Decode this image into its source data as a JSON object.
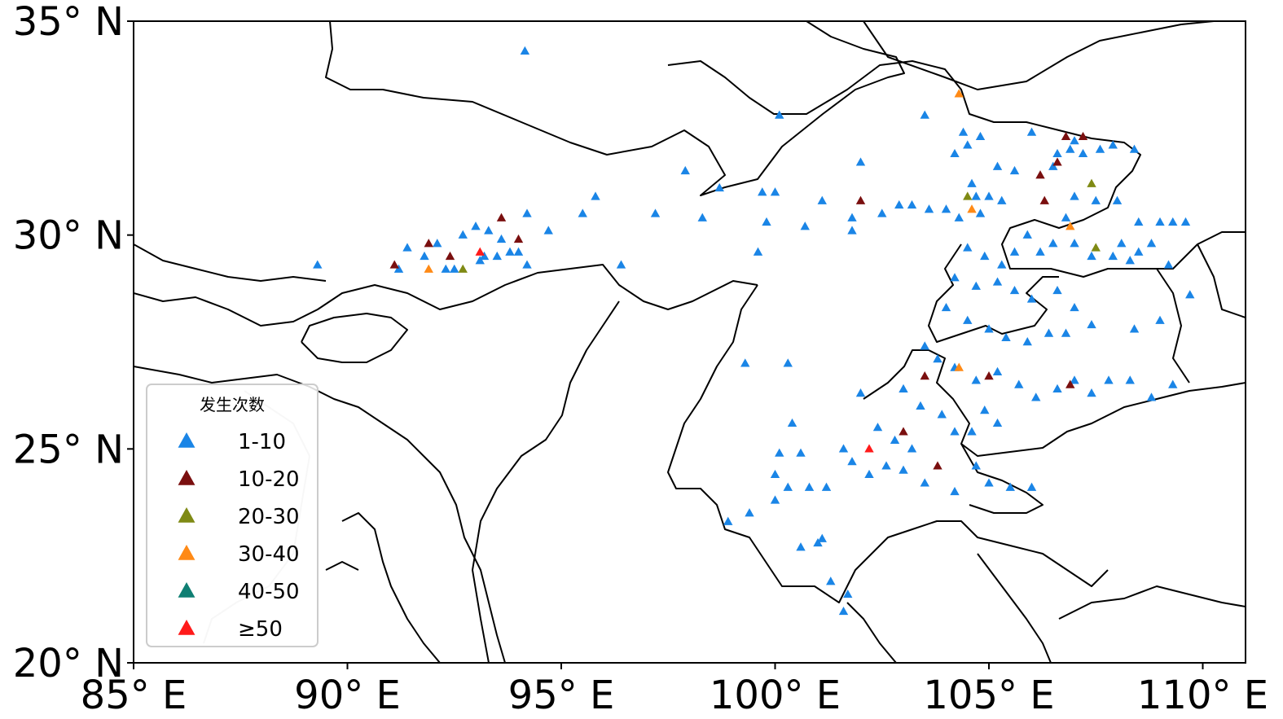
{
  "axis": {
    "lon_range": [
      85,
      111
    ],
    "lat_range": [
      20,
      35
    ],
    "x_ticks": [
      {
        "value": 85,
        "label": "85° E"
      },
      {
        "value": 90,
        "label": "90° E"
      },
      {
        "value": 95,
        "label": "95° E"
      },
      {
        "value": 100,
        "label": "100° E"
      },
      {
        "value": 105,
        "label": "105° E"
      },
      {
        "value": 110,
        "label": "110° E"
      }
    ],
    "y_ticks": [
      {
        "value": 35,
        "label": "35° N"
      },
      {
        "value": 30,
        "label": "30° N"
      },
      {
        "value": 25,
        "label": "25° N"
      },
      {
        "value": 20,
        "label": "20° N"
      }
    ]
  },
  "legend": {
    "title": "发生次数",
    "placement": "bottom-left",
    "items": [
      {
        "label": "1-10",
        "color": "#1a85e6"
      },
      {
        "label": "10-20",
        "color": "#7a0f0f"
      },
      {
        "label": "20-30",
        "color": "#7f8a14"
      },
      {
        "label": "30-40",
        "color": "#ff8a16"
      },
      {
        "label": "40-50",
        "color": "#0f7f73"
      },
      {
        "label": "≥50",
        "color": "#ff1a1a"
      }
    ]
  },
  "chart_data": {
    "type": "scatter",
    "marker": "triangle",
    "x_unit": "longitude °E",
    "y_unit": "latitude °N",
    "series": [
      {
        "name": "1-10",
        "color": "#1a85e6",
        "points": [
          [
            94.15,
            34.3
          ],
          [
            89.3,
            29.3
          ],
          [
            91.2,
            29.2
          ],
          [
            91.4,
            29.7
          ],
          [
            91.8,
            29.5
          ],
          [
            92.1,
            29.8
          ],
          [
            92.3,
            29.2
          ],
          [
            92.5,
            29.2
          ],
          [
            92.7,
            30.0
          ],
          [
            93.0,
            30.2
          ],
          [
            93.1,
            29.4
          ],
          [
            93.2,
            29.5
          ],
          [
            93.3,
            30.1
          ],
          [
            93.5,
            29.5
          ],
          [
            93.6,
            29.9
          ],
          [
            93.8,
            29.6
          ],
          [
            94.0,
            29.6
          ],
          [
            94.2,
            29.3
          ],
          [
            94.2,
            30.5
          ],
          [
            94.7,
            30.1
          ],
          [
            95.5,
            30.5
          ],
          [
            95.8,
            30.9
          ],
          [
            96.4,
            29.3
          ],
          [
            97.2,
            30.5
          ],
          [
            97.9,
            31.5
          ],
          [
            98.3,
            30.4
          ],
          [
            98.7,
            31.1
          ],
          [
            99.3,
            27.0
          ],
          [
            99.7,
            31.0
          ],
          [
            100.0,
            31.0
          ],
          [
            99.8,
            30.3
          ],
          [
            100.1,
            32.8
          ],
          [
            100.3,
            27.0
          ],
          [
            100.7,
            30.2
          ],
          [
            101.1,
            30.8
          ],
          [
            101.8,
            30.4
          ],
          [
            101.8,
            30.1
          ],
          [
            102.0,
            31.7
          ],
          [
            102.5,
            30.5
          ],
          [
            102.9,
            30.7
          ],
          [
            103.2,
            30.7
          ],
          [
            103.6,
            30.6
          ],
          [
            104.0,
            30.6
          ],
          [
            103.5,
            32.8
          ],
          [
            104.3,
            30.4
          ],
          [
            104.2,
            31.9
          ],
          [
            104.4,
            32.4
          ],
          [
            104.5,
            32.1
          ],
          [
            104.6,
            31.2
          ],
          [
            104.7,
            30.9
          ],
          [
            104.8,
            30.5
          ],
          [
            105.0,
            30.9
          ],
          [
            105.3,
            30.8
          ],
          [
            104.8,
            32.3
          ],
          [
            105.2,
            31.6
          ],
          [
            105.6,
            31.5
          ],
          [
            106.0,
            32.4
          ],
          [
            106.6,
            31.9
          ],
          [
            106.9,
            32.0
          ],
          [
            107.0,
            32.2
          ],
          [
            107.2,
            31.9
          ],
          [
            107.6,
            32.0
          ],
          [
            107.9,
            32.1
          ],
          [
            108.4,
            32.0
          ],
          [
            106.5,
            31.6
          ],
          [
            106.8,
            30.4
          ],
          [
            107.0,
            30.9
          ],
          [
            107.5,
            30.8
          ],
          [
            108.0,
            30.8
          ],
          [
            108.5,
            30.3
          ],
          [
            109.0,
            30.3
          ],
          [
            109.3,
            30.3
          ],
          [
            109.6,
            30.3
          ],
          [
            108.1,
            29.8
          ],
          [
            108.5,
            29.6
          ],
          [
            108.8,
            29.8
          ],
          [
            108.3,
            29.4
          ],
          [
            109.2,
            29.3
          ],
          [
            109.7,
            28.6
          ],
          [
            109.0,
            28.0
          ],
          [
            108.4,
            27.8
          ],
          [
            104.5,
            29.7
          ],
          [
            104.9,
            29.5
          ],
          [
            105.3,
            29.3
          ],
          [
            105.6,
            29.6
          ],
          [
            105.9,
            30.0
          ],
          [
            106.2,
            29.6
          ],
          [
            106.5,
            29.8
          ],
          [
            107.0,
            29.8
          ],
          [
            107.4,
            29.5
          ],
          [
            107.9,
            29.5
          ],
          [
            104.2,
            29.0
          ],
          [
            104.7,
            28.8
          ],
          [
            105.2,
            28.9
          ],
          [
            105.6,
            28.7
          ],
          [
            106.0,
            28.5
          ],
          [
            106.6,
            28.7
          ],
          [
            107.0,
            28.3
          ],
          [
            104.0,
            28.3
          ],
          [
            104.5,
            28.0
          ],
          [
            105.0,
            27.8
          ],
          [
            105.4,
            27.6
          ],
          [
            105.9,
            27.5
          ],
          [
            106.4,
            27.7
          ],
          [
            106.8,
            27.7
          ],
          [
            107.4,
            27.9
          ],
          [
            103.5,
            27.4
          ],
          [
            103.8,
            27.1
          ],
          [
            104.2,
            26.9
          ],
          [
            104.7,
            26.6
          ],
          [
            105.2,
            26.8
          ],
          [
            105.7,
            26.5
          ],
          [
            106.1,
            26.2
          ],
          [
            106.6,
            26.4
          ],
          [
            107.0,
            26.6
          ],
          [
            107.4,
            26.3
          ],
          [
            107.8,
            26.6
          ],
          [
            108.3,
            26.6
          ],
          [
            108.8,
            26.2
          ],
          [
            109.3,
            26.5
          ],
          [
            103.0,
            26.4
          ],
          [
            103.4,
            26.0
          ],
          [
            103.9,
            25.8
          ],
          [
            104.2,
            25.4
          ],
          [
            104.6,
            25.4
          ],
          [
            104.9,
            25.9
          ],
          [
            105.2,
            25.6
          ],
          [
            102.0,
            26.3
          ],
          [
            102.4,
            25.5
          ],
          [
            102.8,
            25.2
          ],
          [
            103.2,
            25.0
          ],
          [
            101.6,
            25.0
          ],
          [
            101.8,
            24.7
          ],
          [
            102.2,
            24.4
          ],
          [
            102.6,
            24.6
          ],
          [
            103.0,
            24.5
          ],
          [
            103.5,
            24.2
          ],
          [
            104.2,
            24.0
          ],
          [
            104.7,
            24.6
          ],
          [
            105.0,
            24.2
          ],
          [
            105.5,
            24.1
          ],
          [
            106.0,
            24.1
          ],
          [
            100.4,
            25.6
          ],
          [
            100.1,
            24.9
          ],
          [
            100.6,
            24.9
          ],
          [
            100.0,
            24.4
          ],
          [
            100.3,
            24.1
          ],
          [
            100.8,
            24.1
          ],
          [
            101.2,
            24.1
          ],
          [
            100.0,
            23.8
          ],
          [
            99.4,
            23.5
          ],
          [
            98.9,
            23.3
          ],
          [
            100.6,
            22.7
          ],
          [
            101.0,
            22.8
          ],
          [
            101.1,
            22.9
          ],
          [
            101.3,
            21.9
          ],
          [
            101.6,
            21.2
          ],
          [
            101.7,
            21.6
          ],
          [
            99.6,
            29.6
          ]
        ]
      },
      {
        "name": "10-20",
        "color": "#7a0f0f",
        "points": [
          [
            91.1,
            29.3
          ],
          [
            91.9,
            29.8
          ],
          [
            92.4,
            29.5
          ],
          [
            93.6,
            30.4
          ],
          [
            94.0,
            29.9
          ],
          [
            102.0,
            30.8
          ],
          [
            103.5,
            26.7
          ],
          [
            103.0,
            25.4
          ],
          [
            103.8,
            24.6
          ],
          [
            105.0,
            26.7
          ],
          [
            106.2,
            31.4
          ],
          [
            106.3,
            30.8
          ],
          [
            106.6,
            31.7
          ],
          [
            106.8,
            32.3
          ],
          [
            107.2,
            32.3
          ],
          [
            106.9,
            26.5
          ]
        ]
      },
      {
        "name": "20-30",
        "color": "#7f8a14",
        "points": [
          [
            92.7,
            29.2
          ],
          [
            104.5,
            30.9
          ],
          [
            107.4,
            31.2
          ],
          [
            107.5,
            29.7
          ]
        ]
      },
      {
        "name": "30-40",
        "color": "#ff8a16",
        "points": [
          [
            91.9,
            29.2
          ],
          [
            104.6,
            30.6
          ],
          [
            104.3,
            33.3
          ],
          [
            104.3,
            26.9
          ],
          [
            106.9,
            30.2
          ]
        ]
      },
      {
        "name": "40-50",
        "color": "#0f7f73",
        "points": []
      },
      {
        "name": "≥50",
        "color": "#ff1a1a",
        "points": [
          [
            93.1,
            29.6
          ],
          [
            102.2,
            25.0
          ]
        ]
      }
    ]
  }
}
